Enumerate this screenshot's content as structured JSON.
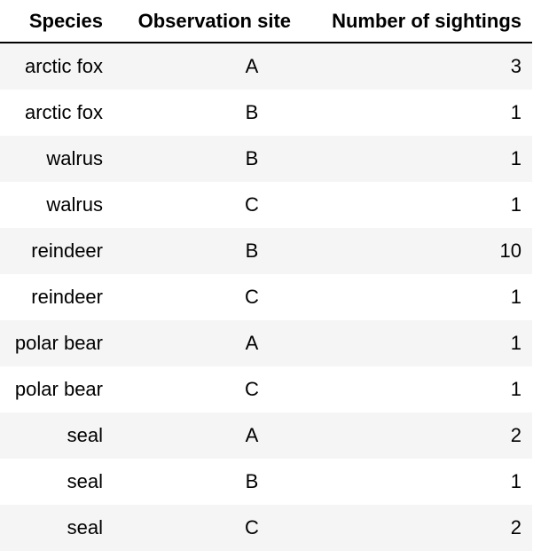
{
  "chart_data": {
    "type": "table",
    "columns": [
      "Species",
      "Observation site",
      "Number of sightings"
    ],
    "rows": [
      [
        "arctic fox",
        "A",
        "3"
      ],
      [
        "arctic fox",
        "B",
        "1"
      ],
      [
        "walrus",
        "B",
        "1"
      ],
      [
        "walrus",
        "C",
        "1"
      ],
      [
        "reindeer",
        "B",
        "10"
      ],
      [
        "reindeer",
        "C",
        "1"
      ],
      [
        "polar bear",
        "A",
        "1"
      ],
      [
        "polar bear",
        "C",
        "1"
      ],
      [
        "seal",
        "A",
        "2"
      ],
      [
        "seal",
        "B",
        "1"
      ],
      [
        "seal",
        "C",
        "2"
      ]
    ],
    "stripe_color": "#f5f5f5",
    "rule_color": "#000000"
  }
}
